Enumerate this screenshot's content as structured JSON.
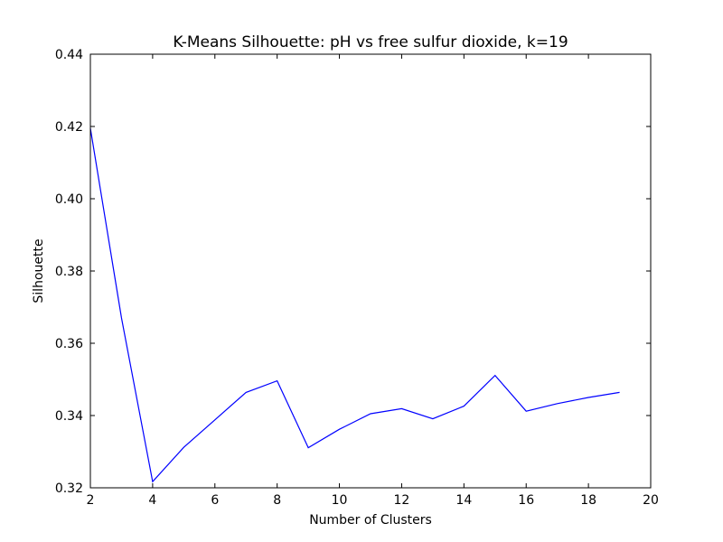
{
  "chart_data": {
    "type": "line",
    "title": "K-Means Silhouette: pH vs free sulfur dioxide, k=19",
    "xlabel": "Number of Clusters",
    "ylabel": "Silhouette",
    "xlim": [
      2,
      20
    ],
    "ylim": [
      0.32,
      0.44
    ],
    "xticks": [
      2,
      4,
      6,
      8,
      10,
      12,
      14,
      16,
      18,
      20
    ],
    "xtick_labels": [
      "2",
      "4",
      "6",
      "8",
      "10",
      "12",
      "14",
      "16",
      "18",
      "20"
    ],
    "yticks": [
      0.32,
      0.34,
      0.36,
      0.38,
      0.4,
      0.42,
      0.44
    ],
    "ytick_labels": [
      "0.32",
      "0.34",
      "0.36",
      "0.38",
      "0.40",
      "0.42",
      "0.44"
    ],
    "grid": false,
    "series": [
      {
        "color": "#0000ff",
        "x": [
          2,
          3,
          4,
          5,
          6,
          7,
          8,
          9,
          10,
          11,
          12,
          13,
          14,
          15,
          16,
          17,
          18,
          19
        ],
        "y": [
          0.4195,
          0.367,
          0.3217,
          0.3312,
          0.3388,
          0.3464,
          0.3496,
          0.3311,
          0.3362,
          0.3405,
          0.3419,
          0.3391,
          0.3426,
          0.3511,
          0.3412,
          0.3433,
          0.345,
          0.3464
        ]
      }
    ]
  }
}
